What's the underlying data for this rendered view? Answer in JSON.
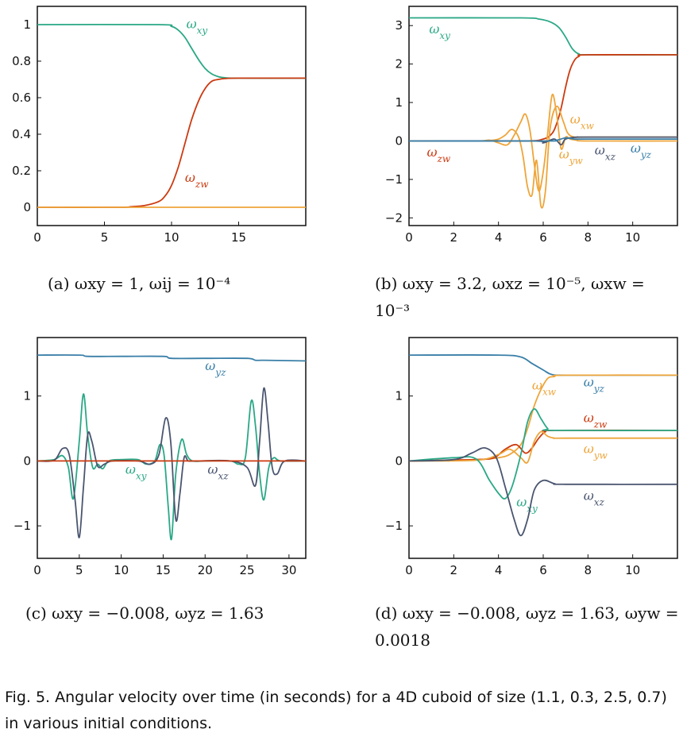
{
  "figure_caption": "Fig. 5. Angular velocity over time (in seconds) for a 4D cuboid of size (1.1, 0.3, 2.5, 0.7) in various initial conditions.",
  "colors": {
    "xy": "#2aa886",
    "zw": "#cc3a10",
    "yz": "#3a7fa8",
    "xz": "#4a5570",
    "xw": "#eea53a",
    "yw": "#eea53a",
    "red": "#cc3a10"
  },
  "chart_data": [
    {
      "type": "line",
      "id": "a",
      "caption": "(a) ωxy = 1, ωij = 10⁻⁴",
      "xlim": [
        0,
        20
      ],
      "ylim": [
        -0.1,
        1.1
      ],
      "xticks": [
        "0",
        "5",
        "10",
        "15"
      ],
      "yticks": [
        "0",
        "0.2",
        "0.4",
        "0.6",
        "0.8",
        "1"
      ],
      "series": [
        {
          "name": "ωxy",
          "label": "ωxy",
          "color": "#2aa886",
          "x": [
            0,
            9,
            10,
            10.5,
            11,
            11.5,
            12,
            12.5,
            13,
            13.5,
            14,
            15,
            20
          ],
          "y": [
            1,
            1,
            0.99,
            0.97,
            0.93,
            0.87,
            0.81,
            0.76,
            0.73,
            0.715,
            0.709,
            0.707,
            0.707
          ]
        },
        {
          "name": "ωzw",
          "label": "ωzw",
          "color": "#cc3a10",
          "x": [
            0,
            6,
            7,
            8,
            9,
            9.5,
            10,
            10.5,
            11,
            11.5,
            12,
            12.5,
            13,
            13.5,
            14,
            15,
            20
          ],
          "y": [
            0,
            0,
            0.003,
            0.01,
            0.03,
            0.06,
            0.12,
            0.22,
            0.35,
            0.48,
            0.58,
            0.65,
            0.69,
            0.7,
            0.705,
            0.707,
            0.707
          ]
        },
        {
          "name": "ωij",
          "label": "",
          "color": "#eea53a",
          "x": [
            0,
            20
          ],
          "y": [
            0,
            0
          ]
        }
      ]
    },
    {
      "type": "line",
      "id": "b",
      "caption": "(b) ωxy = 3.2, ωxz = 10⁻⁵, ωxw = 10⁻³",
      "xlim": [
        0,
        12
      ],
      "ylim": [
        -2.2,
        3.5
      ],
      "xticks": [
        "0",
        "2",
        "4",
        "6",
        "8",
        "10"
      ],
      "yticks": [
        "-2",
        "-1",
        "0",
        "1",
        "2",
        "3"
      ],
      "series": [
        {
          "name": "ωxy",
          "label": "ωxy",
          "color": "#2aa886",
          "x": [
            0,
            5,
            5.8,
            6.3,
            6.7,
            7,
            7.3,
            7.6,
            8,
            12
          ],
          "y": [
            3.2,
            3.2,
            3.17,
            3.1,
            2.95,
            2.7,
            2.4,
            2.26,
            2.24,
            2.24
          ]
        },
        {
          "name": "ωzw",
          "label": "ωzw",
          "color": "#cc3a10",
          "x": [
            0,
            5,
            6,
            6.4,
            6.6,
            6.8,
            7,
            7.2,
            7.4,
            7.6,
            8,
            12
          ],
          "y": [
            0,
            0,
            0.05,
            0.2,
            0.45,
            0.85,
            1.4,
            1.85,
            2.1,
            2.2,
            2.24,
            2.24
          ]
        },
        {
          "name": "ωxw",
          "label": "ωxw",
          "color": "#eea53a",
          "x": [
            0,
            3,
            3.6,
            4,
            4.4,
            4.7,
            5,
            5.2,
            5.4,
            5.6,
            5.8,
            6,
            6.2,
            6.4,
            6.6,
            6.8,
            7,
            7.2,
            7.5,
            8,
            12
          ],
          "y": [
            0,
            0,
            0.02,
            -0.05,
            -0.1,
            0.15,
            0.5,
            0.7,
            0.3,
            -0.6,
            -1.3,
            -0.8,
            0.2,
            1.2,
            0.7,
            -0.2,
            0.1,
            0.05,
            0.02,
            0,
            0
          ]
        },
        {
          "name": "ωyw",
          "label": "ωyw",
          "color": "#eea53a",
          "x": [
            0,
            3,
            3.6,
            4,
            4.3,
            4.6,
            4.9,
            5.1,
            5.3,
            5.5,
            5.7,
            5.9,
            6.1,
            6.3,
            6.6,
            6.9,
            7.1,
            7.4,
            8,
            12
          ],
          "y": [
            0,
            0,
            0.01,
            0.05,
            0.15,
            0.3,
            0.1,
            -0.4,
            -1.2,
            -1.4,
            -0.5,
            -1.7,
            -1.3,
            0.3,
            0.9,
            0.5,
            0.2,
            0.1,
            0.1,
            0.1
          ]
        },
        {
          "name": "ωxz",
          "label": "ωxz",
          "color": "#4a5570",
          "x": [
            0,
            5.5,
            6,
            6.5,
            6.8,
            7,
            7.5,
            8,
            12
          ],
          "y": [
            0,
            0,
            -0.05,
            0.05,
            -0.1,
            0.05,
            0.1,
            0.1,
            0.1
          ]
        },
        {
          "name": "ωyz",
          "label": "ωyz",
          "color": "#3a7fa8",
          "x": [
            0,
            6,
            6.6,
            7,
            7.4,
            8,
            12
          ],
          "y": [
            0,
            0,
            0.02,
            0.08,
            0.05,
            0.05,
            0.05
          ]
        }
      ]
    },
    {
      "type": "line",
      "id": "c",
      "caption": "(c) ωxy = −0.008, ωyz = 1.63",
      "xlim": [
        0,
        32
      ],
      "ylim": [
        -1.5,
        1.9
      ],
      "xticks": [
        "0",
        "5",
        "10",
        "15",
        "20",
        "25",
        "30"
      ],
      "yticks": [
        "-1",
        "0",
        "1"
      ],
      "series": [
        {
          "name": "ωyz",
          "label": "ωyz",
          "color": "#3a7fa8",
          "x": [
            0,
            5,
            6,
            10,
            15,
            16,
            20,
            25,
            26,
            27,
            32
          ],
          "y": [
            1.63,
            1.63,
            1.61,
            1.61,
            1.61,
            1.58,
            1.58,
            1.58,
            1.55,
            1.55,
            1.54
          ]
        },
        {
          "name": "ωxy",
          "label": "ωxy",
          "color": "#2aa886",
          "x": [
            0,
            2,
            3,
            3.7,
            4.3,
            5,
            5.5,
            6,
            6.6,
            7.2,
            7.8,
            8.5,
            10,
            12,
            13,
            14,
            14.6,
            15.1,
            15.6,
            16,
            16.5,
            17.2,
            17.8,
            18.5,
            20,
            23,
            24,
            24.8,
            25.5,
            26,
            26.5,
            27,
            27.6,
            28.2,
            29,
            32
          ],
          "y": [
            0,
            0.02,
            0.08,
            -0.1,
            -0.58,
            0.3,
            1.03,
            0.4,
            -0.1,
            -0.05,
            -0.12,
            0,
            0.02,
            0.02,
            -0.05,
            0,
            0.25,
            0.1,
            -0.7,
            -1.2,
            -0.2,
            0.33,
            0.1,
            0,
            0,
            0,
            -0.05,
            0.05,
            0.92,
            0.55,
            -0.2,
            -0.6,
            -0.1,
            0.05,
            0,
            0
          ]
        },
        {
          "name": "ωxz",
          "label": "ωxz",
          "color": "#4a5570",
          "x": [
            0,
            2,
            3,
            3.8,
            4.5,
            5,
            5.5,
            6,
            6.5,
            7.2,
            8,
            9,
            12,
            13.5,
            14.5,
            15.3,
            15.9,
            16.5,
            17,
            17.5,
            18,
            19,
            23,
            25,
            26,
            26.5,
            27,
            27.5,
            28,
            28.6,
            29.5,
            32
          ],
          "y": [
            0,
            0.01,
            0.19,
            0.1,
            -0.6,
            -1.18,
            -0.4,
            0.4,
            0.3,
            -0.08,
            -0.05,
            0,
            0,
            -0.05,
            0.1,
            0.66,
            0.3,
            -0.9,
            -0.5,
            0.05,
            0,
            0,
            0,
            -0.1,
            -0.38,
            0.3,
            1.12,
            0.6,
            -0.1,
            -0.2,
            0,
            0
          ]
        },
        {
          "name": "ωij",
          "label": "",
          "color": "#cc3a10",
          "x": [
            0,
            32
          ],
          "y": [
            0,
            0
          ]
        }
      ]
    },
    {
      "type": "line",
      "id": "d",
      "caption": "(d) ωxy = −0.008, ωyz = 1.63, ωyw = 0.0018",
      "xlim": [
        0,
        12
      ],
      "ylim": [
        -1.5,
        1.9
      ],
      "xticks": [
        "0",
        "2",
        "4",
        "6",
        "8",
        "10"
      ],
      "yticks": [
        "-1",
        "0",
        "1"
      ],
      "series": [
        {
          "name": "ωyz",
          "label": "ωyz",
          "color": "#3a7fa8",
          "x": [
            0,
            4,
            5,
            5.5,
            6,
            6.3,
            6.6,
            7,
            12
          ],
          "y": [
            1.63,
            1.63,
            1.6,
            1.5,
            1.4,
            1.34,
            1.32,
            1.32,
            1.32
          ]
        },
        {
          "name": "ωxw",
          "label": "ωxw",
          "color": "#eea53a",
          "x": [
            0,
            3,
            4,
            4.5,
            5,
            5.3,
            5.6,
            5.9,
            6.2,
            6.5,
            7,
            12
          ],
          "y": [
            0,
            0.02,
            0.05,
            0.1,
            0.25,
            0.5,
            0.85,
            1.1,
            1.27,
            1.3,
            1.32,
            1.32
          ]
        },
        {
          "name": "ωzw",
          "label": "ωzw",
          "color": "#cc3a10",
          "x": [
            0,
            3,
            3.8,
            4.3,
            4.8,
            5.2,
            5.5,
            5.8,
            6.1,
            6.5,
            12
          ],
          "y": [
            0,
            0.02,
            0.05,
            0.18,
            0.25,
            0.12,
            0.2,
            0.35,
            0.45,
            0.47,
            0.47
          ]
        },
        {
          "name": "ωyw",
          "label": "ωyw",
          "color": "#eea53a",
          "x": [
            0,
            3,
            4,
            4.5,
            5,
            5.3,
            5.6,
            5.9,
            6.2,
            6.5,
            7,
            12
          ],
          "y": [
            0,
            0.01,
            0.1,
            0.18,
            0.05,
            -0.02,
            0.3,
            0.45,
            0.38,
            0.35,
            0.35,
            0.35
          ]
        },
        {
          "name": "ωxy",
          "label": "ωxy",
          "color": "#2aa886",
          "x": [
            0,
            2,
            3,
            3.6,
            4,
            4.3,
            4.6,
            5,
            5.3,
            5.6,
            5.9,
            6.2,
            6.5,
            12
          ],
          "y": [
            0,
            0.05,
            0.03,
            -0.3,
            -0.5,
            -0.58,
            -0.4,
            0.1,
            0.6,
            0.8,
            0.65,
            0.5,
            0.47,
            0.47
          ]
        },
        {
          "name": "ωxz",
          "label": "ωxz",
          "color": "#4a5570",
          "x": [
            0,
            2,
            2.8,
            3.4,
            3.9,
            4.3,
            4.7,
            5,
            5.3,
            5.6,
            6,
            6.5,
            7,
            12
          ],
          "y": [
            0,
            0.02,
            0.12,
            0.2,
            0.05,
            -0.4,
            -0.9,
            -1.15,
            -0.9,
            -0.45,
            -0.3,
            -0.35,
            -0.36,
            -0.36
          ]
        }
      ]
    }
  ]
}
